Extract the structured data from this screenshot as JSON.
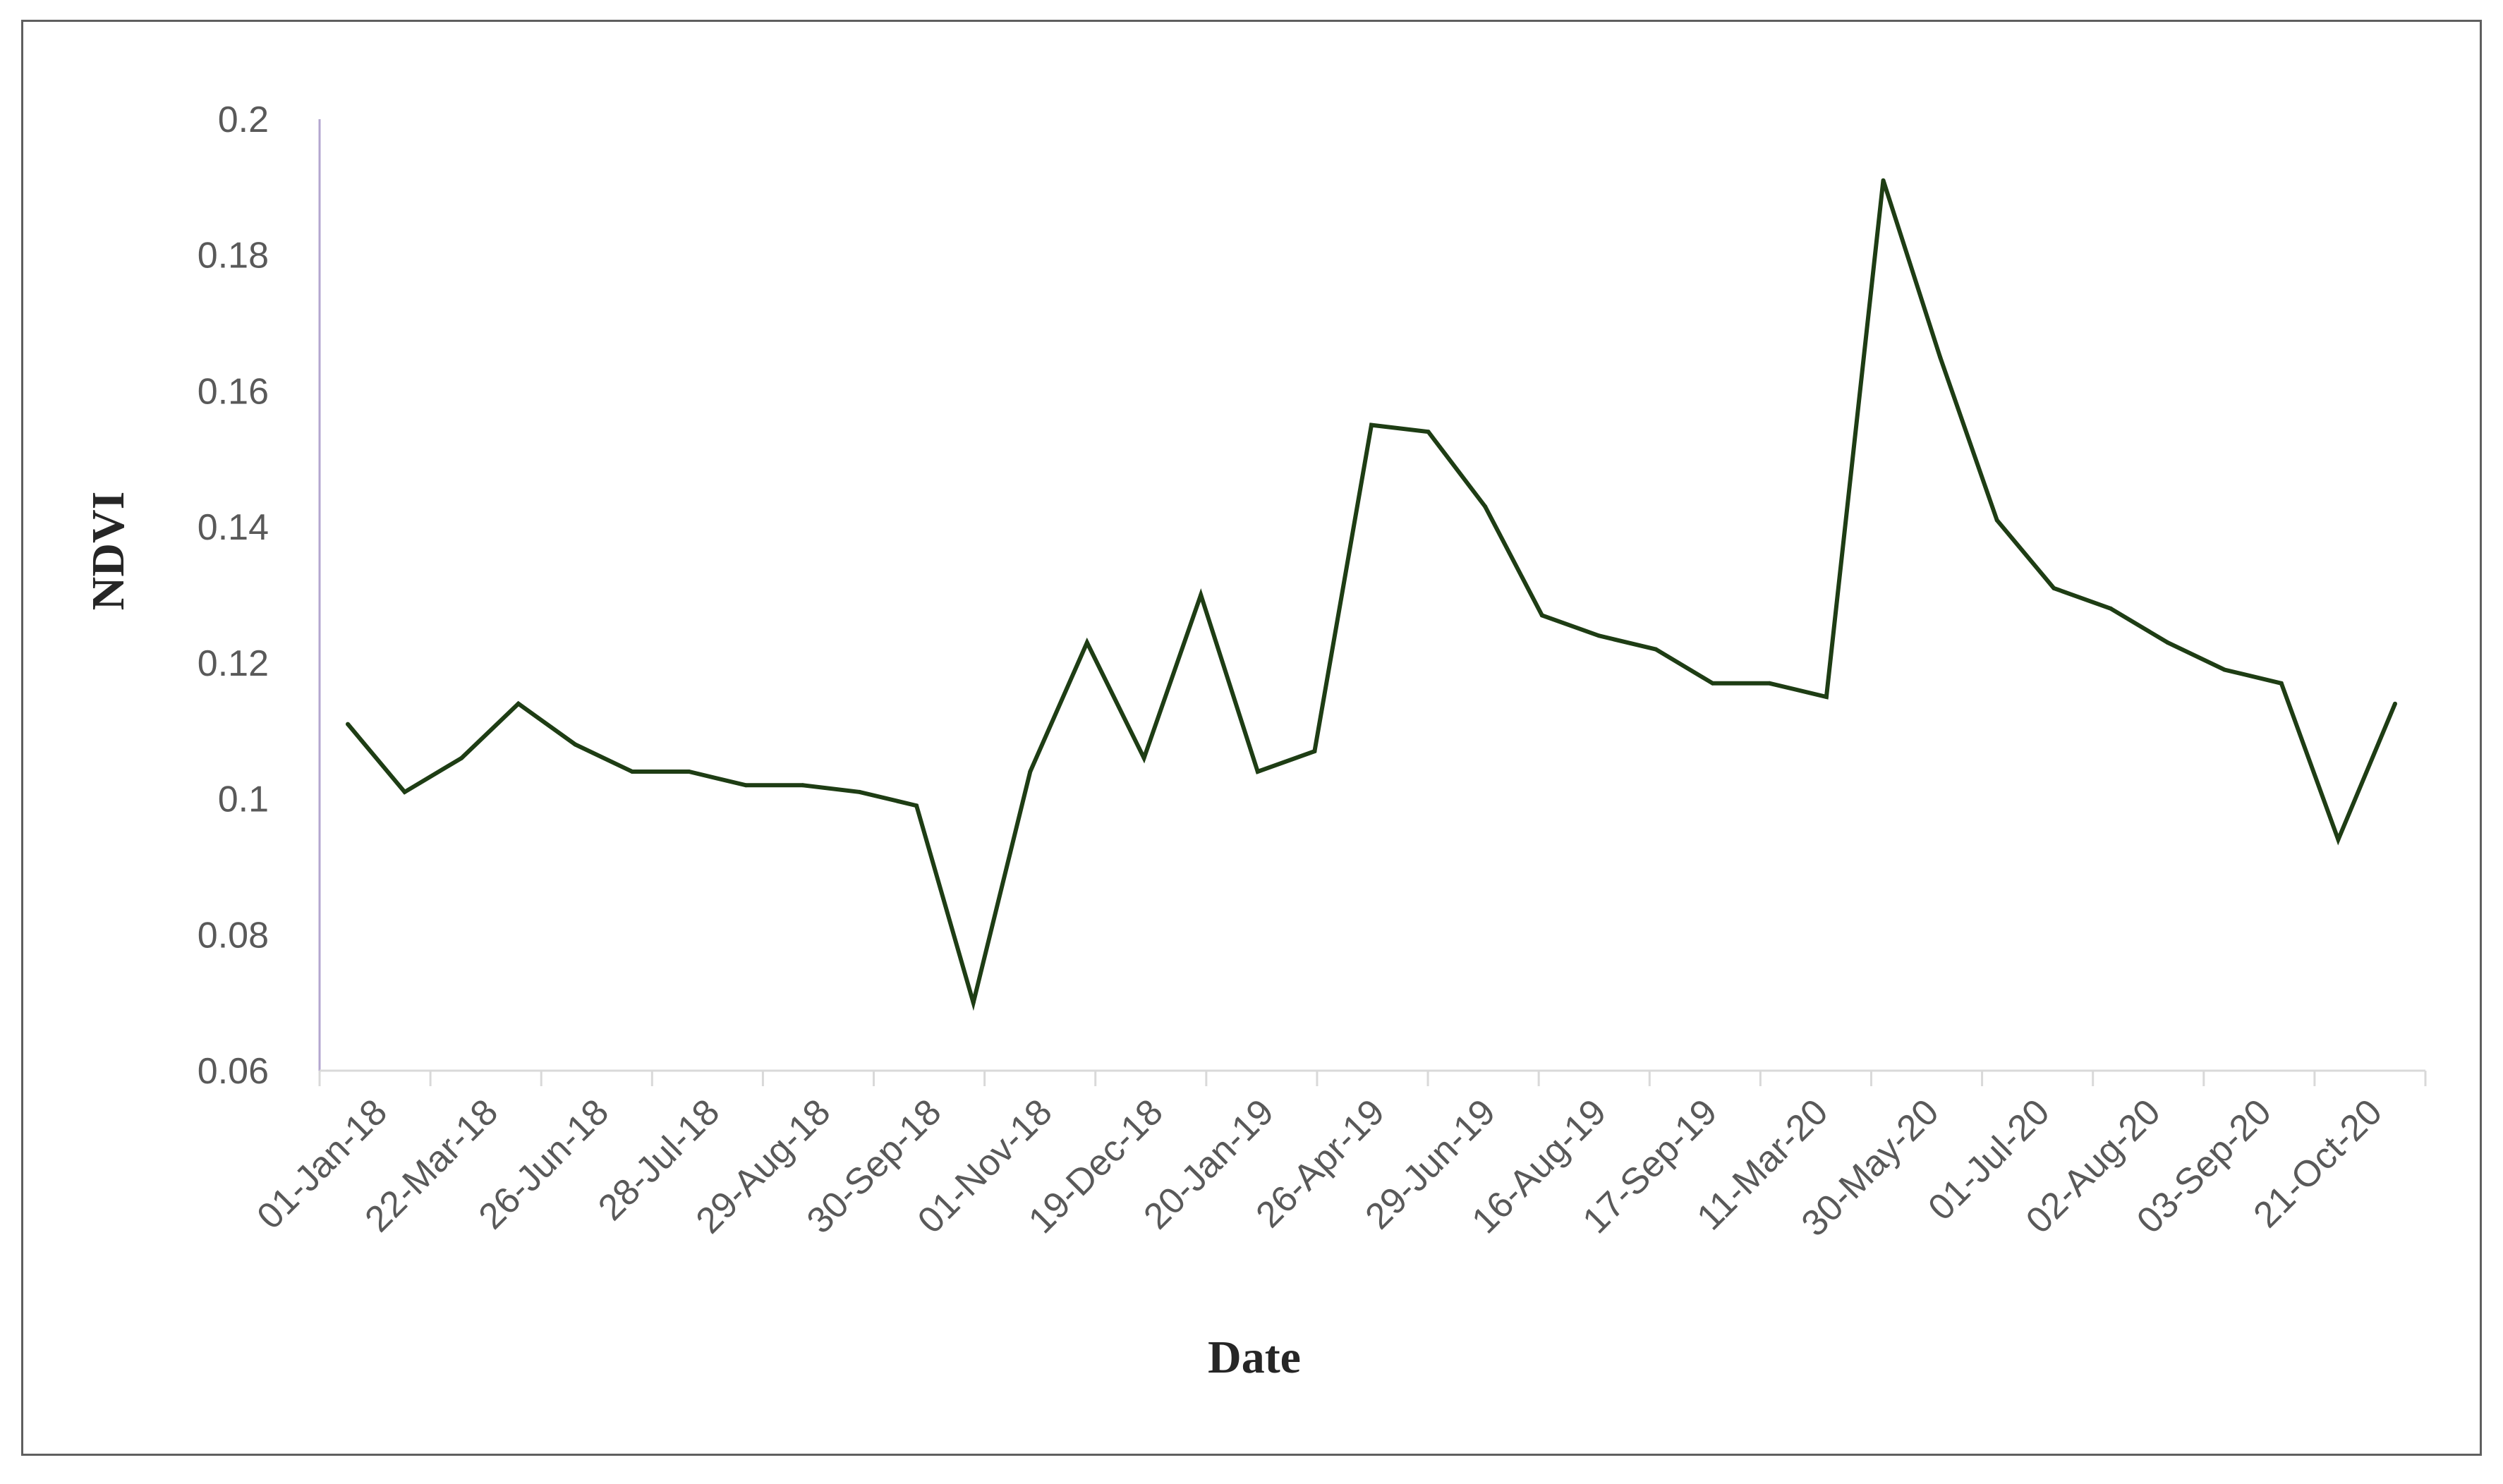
{
  "chart_data": {
    "type": "line",
    "title": "",
    "xlabel": "Date",
    "ylabel": "NDVI",
    "ylim": [
      0.06,
      0.2
    ],
    "y_ticks": [
      0.06,
      0.08,
      0.1,
      0.12,
      0.14,
      0.16,
      0.18,
      0.2
    ],
    "y_tick_labels": [
      "0.06",
      "0.08",
      "0.1",
      "0.12",
      "0.14",
      "0.16",
      "0.18",
      "0.2"
    ],
    "x_tick_labels": [
      "01-Jan-18",
      "22-Mar-18",
      "26-Jun-18",
      "28-Jul-18",
      "29-Aug-18",
      "30-Sep-18",
      "01-Nov-18",
      "19-Dec-18",
      "20-Jan-19",
      "26-Apr-19",
      "29-Jun-19",
      "16-Aug-19",
      "17-Sep-19",
      "11-Mar-20",
      "30-May-20",
      "01-Jul-20",
      "02-Aug-20",
      "03-Sep-20",
      "21-Oct-20"
    ],
    "grid": false,
    "legend": "none",
    "line_color": "#1e3d14",
    "series": [
      {
        "values": [
          0.111,
          0.101,
          0.106,
          0.114,
          0.108,
          0.104,
          0.104,
          0.102,
          0.102,
          0.101,
          0.099,
          0.07,
          0.104,
          0.123,
          0.106,
          0.13,
          0.104,
          0.107,
          0.155,
          0.154,
          0.143,
          0.127,
          0.124,
          0.122,
          0.117,
          0.117,
          0.115,
          0.191,
          0.165,
          0.141,
          0.131,
          0.128,
          0.123,
          0.119,
          0.117,
          0.094,
          0.114
        ]
      }
    ]
  }
}
